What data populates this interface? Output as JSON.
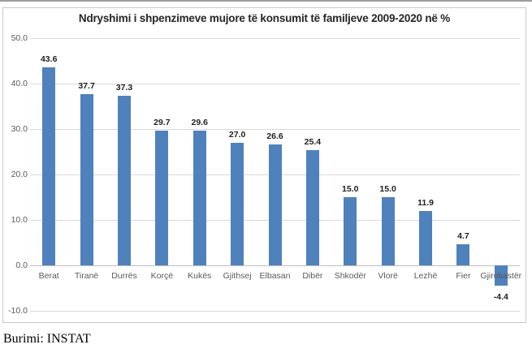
{
  "page": {
    "source_label": "Burimi: INSTAT"
  },
  "chart_data": {
    "type": "bar",
    "title": "Ndryshimi i shpenzimeve mujore të konsumit të familjeve 2009-2020 në %",
    "categories": [
      "Berat",
      "Tiranë",
      "Durrës",
      "Korçë",
      "Kukës",
      "Gjithsej",
      "Elbasan",
      "Dibër",
      "Shkodër",
      "Vlorë",
      "Lezhë",
      "Fier",
      "Gjirokastër"
    ],
    "values": [
      43.6,
      37.7,
      37.3,
      29.7,
      29.6,
      27.0,
      26.6,
      25.4,
      15.0,
      15.0,
      11.9,
      4.7,
      -4.4
    ],
    "value_labels": [
      "43.6",
      "37.7",
      "37.3",
      "29.7",
      "29.6",
      "27.0",
      "26.6",
      "25.4",
      "15.0",
      "15.0",
      "11.9",
      "4.7",
      "-4.4"
    ],
    "xlabel": "",
    "ylabel": "",
    "ylim": [
      -10,
      50
    ],
    "ytick_labels": [
      "50.0",
      "40.0",
      "30.0",
      "20.0",
      "10.0",
      "0.0",
      "-10.0"
    ],
    "grid": true,
    "legend_position": "none",
    "colors": {
      "bar": "#4f81bd",
      "gridline": "#d9d9d9",
      "axis_line": "#bfbfbf",
      "tick_text": "#595959",
      "value_text": "#1f1f1f",
      "title_text": "#262626",
      "frame_border": "#c8c8c8"
    }
  }
}
